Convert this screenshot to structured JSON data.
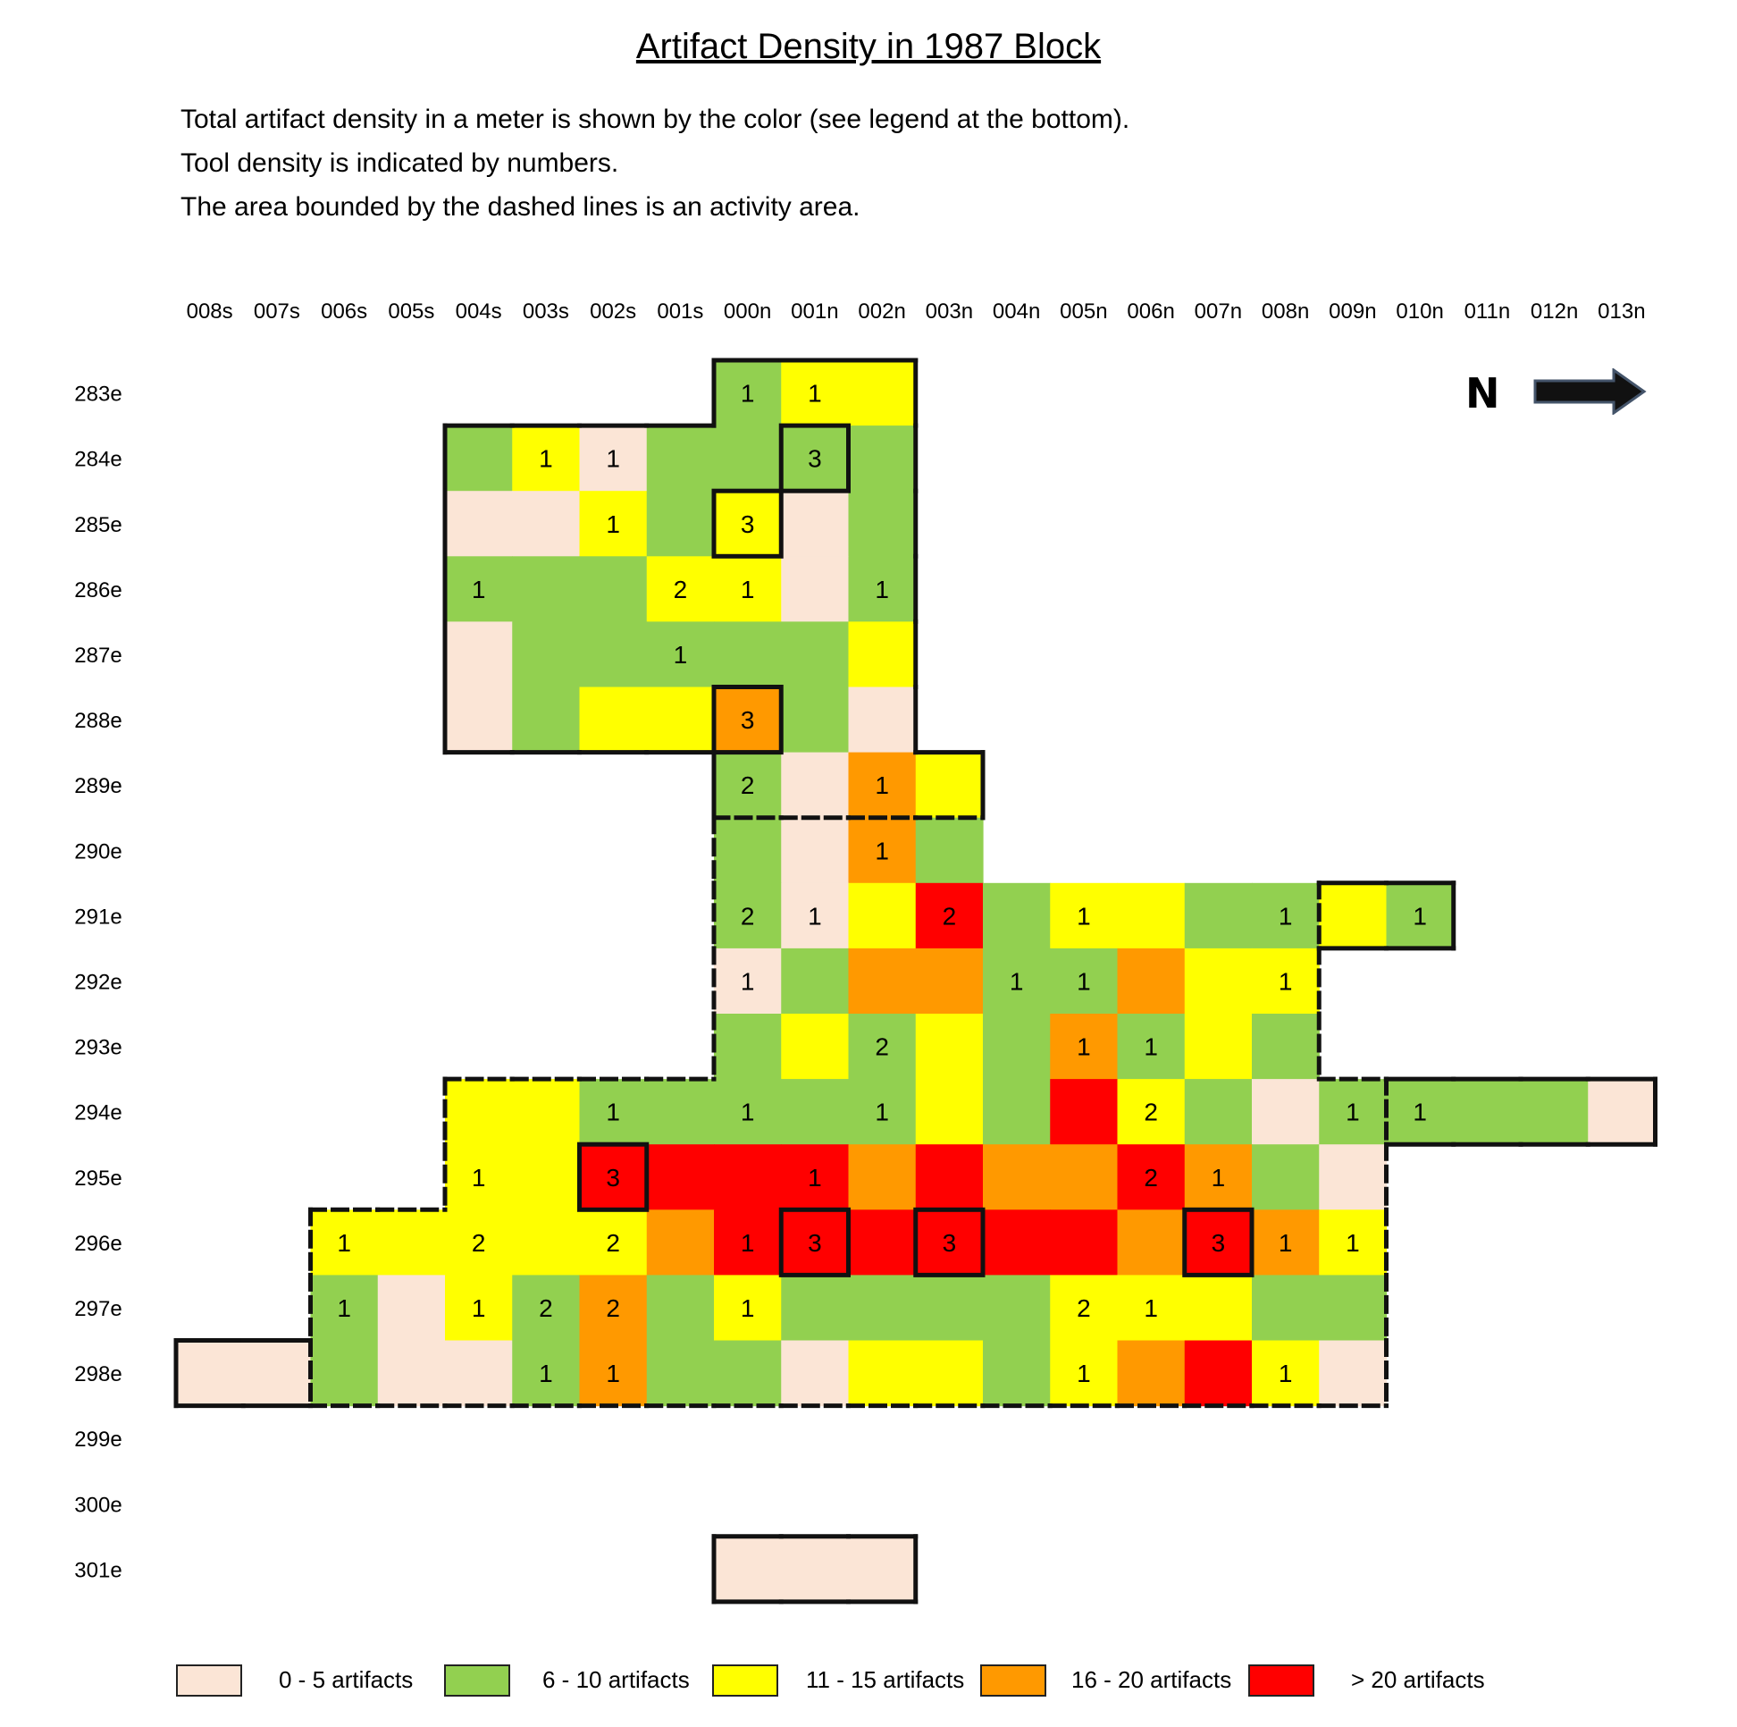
{
  "title": "Artifact Density in 1987 Block",
  "description": [
    "Total artifact density in a meter is shown by the color (see legend at the bottom).",
    "Tool density is indicated by numbers.",
    "The area bounded by the dashed lines is an activity area."
  ],
  "north_label": "N",
  "colors": {
    "c0": "#fbe5d6",
    "c1": "#92d050",
    "c2": "#ffff00",
    "c3": "#ff9900",
    "c4": "#ff0000"
  },
  "legend": [
    {
      "class": "c0",
      "label": "0 - 5 artifacts"
    },
    {
      "class": "c1",
      "label": "6 - 10 artifacts"
    },
    {
      "class": "c2",
      "label": "11 - 15 artifacts"
    },
    {
      "class": "c3",
      "label": "16 - 20 artifacts"
    },
    {
      "class": "c4",
      "label": "> 20 artifacts"
    }
  ],
  "chart_data": {
    "type": "heatmap",
    "columns": [
      "008s",
      "007s",
      "006s",
      "005s",
      "004s",
      "003s",
      "002s",
      "001s",
      "000n",
      "001n",
      "002n",
      "003n",
      "004n",
      "005n",
      "006n",
      "007n",
      "008n",
      "009n",
      "010n",
      "011n",
      "012n",
      "013n"
    ],
    "rows": [
      "283e",
      "284e",
      "285e",
      "286e",
      "287e",
      "288e",
      "289e",
      "290e",
      "291e",
      "292e",
      "293e",
      "294e",
      "295e",
      "296e",
      "297e",
      "298e",
      "299e",
      "300e",
      "301e"
    ],
    "density_classes": [
      "0 - 5 artifacts",
      "6 - 10 artifacts",
      "11 - 15 artifacts",
      "16 - 20 artifacts",
      "> 20 artifacts"
    ],
    "density_class": [
      [
        -1,
        -1,
        -1,
        -1,
        -1,
        -1,
        -1,
        -1,
        1,
        2,
        2,
        -1,
        -1,
        -1,
        -1,
        -1,
        -1,
        -1,
        -1,
        -1,
        -1,
        -1
      ],
      [
        -1,
        -1,
        -1,
        -1,
        1,
        2,
        0,
        1,
        1,
        1,
        1,
        -1,
        -1,
        -1,
        -1,
        -1,
        -1,
        -1,
        -1,
        -1,
        -1,
        -1
      ],
      [
        -1,
        -1,
        -1,
        -1,
        0,
        0,
        2,
        1,
        2,
        0,
        1,
        -1,
        -1,
        -1,
        -1,
        -1,
        -1,
        -1,
        -1,
        -1,
        -1,
        -1
      ],
      [
        -1,
        -1,
        -1,
        -1,
        1,
        1,
        1,
        2,
        2,
        0,
        1,
        -1,
        -1,
        -1,
        -1,
        -1,
        -1,
        -1,
        -1,
        -1,
        -1,
        -1
      ],
      [
        -1,
        -1,
        -1,
        -1,
        0,
        1,
        1,
        1,
        1,
        1,
        2,
        -1,
        -1,
        -1,
        -1,
        -1,
        -1,
        -1,
        -1,
        -1,
        -1,
        -1
      ],
      [
        -1,
        -1,
        -1,
        -1,
        0,
        1,
        2,
        2,
        3,
        1,
        0,
        -1,
        -1,
        -1,
        -1,
        -1,
        -1,
        -1,
        -1,
        -1,
        -1,
        -1
      ],
      [
        -1,
        -1,
        -1,
        -1,
        -1,
        -1,
        -1,
        -1,
        1,
        0,
        3,
        2,
        -1,
        -1,
        -1,
        -1,
        -1,
        -1,
        -1,
        -1,
        -1,
        -1
      ],
      [
        -1,
        -1,
        -1,
        -1,
        -1,
        -1,
        -1,
        -1,
        1,
        0,
        3,
        1,
        -1,
        -1,
        -1,
        -1,
        -1,
        -1,
        -1,
        -1,
        -1,
        -1
      ],
      [
        -1,
        -1,
        -1,
        -1,
        -1,
        -1,
        -1,
        -1,
        1,
        0,
        2,
        4,
        1,
        2,
        2,
        1,
        1,
        2,
        1,
        -1,
        -1,
        -1
      ],
      [
        -1,
        -1,
        -1,
        -1,
        -1,
        -1,
        -1,
        -1,
        0,
        1,
        3,
        3,
        1,
        1,
        3,
        2,
        2,
        -1,
        -1,
        -1,
        -1,
        -1
      ],
      [
        -1,
        -1,
        -1,
        -1,
        -1,
        -1,
        -1,
        -1,
        1,
        2,
        1,
        2,
        1,
        3,
        1,
        2,
        1,
        -1,
        -1,
        -1,
        -1,
        -1
      ],
      [
        -1,
        -1,
        -1,
        -1,
        2,
        2,
        1,
        1,
        1,
        1,
        1,
        2,
        1,
        4,
        2,
        1,
        0,
        1,
        1,
        1,
        1,
        0
      ],
      [
        -1,
        -1,
        -1,
        -1,
        2,
        2,
        4,
        4,
        4,
        4,
        3,
        4,
        3,
        3,
        4,
        3,
        1,
        0,
        -1,
        -1,
        -1,
        -1
      ],
      [
        -1,
        -1,
        2,
        2,
        2,
        2,
        2,
        3,
        4,
        4,
        4,
        4,
        4,
        4,
        3,
        4,
        3,
        2,
        -1,
        -1,
        -1,
        -1
      ],
      [
        -1,
        -1,
        1,
        0,
        2,
        1,
        3,
        1,
        2,
        1,
        1,
        1,
        1,
        2,
        2,
        2,
        1,
        1,
        -1,
        -1,
        -1,
        -1
      ],
      [
        0,
        0,
        1,
        0,
        0,
        1,
        3,
        1,
        1,
        0,
        2,
        2,
        1,
        2,
        3,
        4,
        2,
        0,
        -1,
        -1,
        -1,
        -1
      ],
      [
        -1,
        -1,
        -1,
        -1,
        -1,
        -1,
        -1,
        -1,
        -1,
        -1,
        -1,
        -1,
        -1,
        -1,
        -1,
        -1,
        -1,
        -1,
        -1,
        -1,
        -1,
        -1
      ],
      [
        -1,
        -1,
        -1,
        -1,
        -1,
        -1,
        -1,
        -1,
        -1,
        -1,
        -1,
        -1,
        -1,
        -1,
        -1,
        -1,
        -1,
        -1,
        -1,
        -1,
        -1,
        -1
      ],
      [
        -1,
        -1,
        -1,
        -1,
        -1,
        -1,
        -1,
        -1,
        0,
        0,
        0,
        -1,
        -1,
        -1,
        -1,
        -1,
        -1,
        -1,
        -1,
        -1,
        -1,
        -1
      ]
    ],
    "tool_counts": [
      [
        null,
        null,
        null,
        null,
        null,
        null,
        null,
        null,
        1,
        1,
        null,
        null,
        null,
        null,
        null,
        null,
        null,
        null,
        null,
        null,
        null,
        null
      ],
      [
        null,
        null,
        null,
        null,
        null,
        1,
        1,
        null,
        null,
        3,
        null,
        null,
        null,
        null,
        null,
        null,
        null,
        null,
        null,
        null,
        null,
        null
      ],
      [
        null,
        null,
        null,
        null,
        null,
        null,
        1,
        null,
        3,
        null,
        null,
        null,
        null,
        null,
        null,
        null,
        null,
        null,
        null,
        null,
        null,
        null
      ],
      [
        null,
        null,
        null,
        null,
        1,
        null,
        null,
        2,
        1,
        null,
        1,
        null,
        null,
        null,
        null,
        null,
        null,
        null,
        null,
        null,
        null,
        null
      ],
      [
        null,
        null,
        null,
        null,
        null,
        null,
        null,
        1,
        null,
        null,
        null,
        null,
        null,
        null,
        null,
        null,
        null,
        null,
        null,
        null,
        null,
        null
      ],
      [
        null,
        null,
        null,
        null,
        null,
        null,
        null,
        null,
        3,
        null,
        null,
        null,
        null,
        null,
        null,
        null,
        null,
        null,
        null,
        null,
        null,
        null
      ],
      [
        null,
        null,
        null,
        null,
        null,
        null,
        null,
        null,
        2,
        null,
        1,
        null,
        null,
        null,
        null,
        null,
        null,
        null,
        null,
        null,
        null,
        null
      ],
      [
        null,
        null,
        null,
        null,
        null,
        null,
        null,
        null,
        null,
        null,
        1,
        null,
        null,
        null,
        null,
        null,
        null,
        null,
        null,
        null,
        null,
        null
      ],
      [
        null,
        null,
        null,
        null,
        null,
        null,
        null,
        null,
        2,
        1,
        null,
        2,
        null,
        1,
        null,
        null,
        1,
        null,
        1,
        null,
        null,
        null
      ],
      [
        null,
        null,
        null,
        null,
        null,
        null,
        null,
        null,
        1,
        null,
        null,
        null,
        1,
        1,
        null,
        null,
        1,
        null,
        null,
        null,
        null,
        null
      ],
      [
        null,
        null,
        null,
        null,
        null,
        null,
        null,
        null,
        null,
        null,
        2,
        null,
        null,
        1,
        1,
        null,
        null,
        null,
        null,
        null,
        null,
        null
      ],
      [
        null,
        null,
        null,
        null,
        null,
        null,
        1,
        null,
        1,
        null,
        1,
        null,
        null,
        null,
        2,
        null,
        null,
        1,
        1,
        null,
        null,
        null
      ],
      [
        null,
        null,
        null,
        null,
        1,
        null,
        3,
        null,
        null,
        1,
        null,
        null,
        null,
        null,
        2,
        1,
        null,
        null,
        null,
        null,
        null,
        null
      ],
      [
        null,
        null,
        1,
        null,
        2,
        null,
        2,
        null,
        1,
        3,
        null,
        3,
        null,
        null,
        null,
        3,
        1,
        1,
        null,
        null,
        null,
        null
      ],
      [
        null,
        null,
        1,
        null,
        1,
        2,
        2,
        null,
        1,
        null,
        null,
        null,
        null,
        2,
        1,
        null,
        null,
        null,
        null,
        null,
        null,
        null
      ],
      [
        null,
        null,
        null,
        null,
        null,
        1,
        1,
        null,
        null,
        null,
        null,
        null,
        null,
        1,
        null,
        null,
        1,
        null,
        null,
        null,
        null,
        null
      ],
      [
        null,
        null,
        null,
        null,
        null,
        null,
        null,
        null,
        null,
        null,
        null,
        null,
        null,
        null,
        null,
        null,
        null,
        null,
        null,
        null,
        null,
        null
      ],
      [
        null,
        null,
        null,
        null,
        null,
        null,
        null,
        null,
        null,
        null,
        null,
        null,
        null,
        null,
        null,
        null,
        null,
        null,
        null,
        null,
        null,
        null
      ],
      [
        null,
        null,
        null,
        null,
        null,
        null,
        null,
        null,
        null,
        null,
        null,
        null,
        null,
        null,
        null,
        null,
        null,
        null,
        null,
        null,
        null,
        null
      ]
    ],
    "highlighted_cells": [
      [
        "284e",
        "001n"
      ],
      [
        "285e",
        "000n"
      ],
      [
        "288e",
        "000n"
      ],
      [
        "295e",
        "002s"
      ],
      [
        "296e",
        "001n"
      ],
      [
        "296e",
        "003n"
      ],
      [
        "296e",
        "007n"
      ]
    ]
  }
}
